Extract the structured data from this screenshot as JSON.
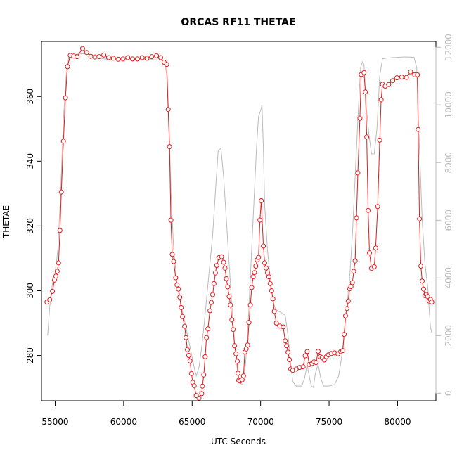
{
  "chart_data": {
    "type": "line",
    "title": "ORCAS RF11 THETAE",
    "xlabel": "UTC Seconds",
    "ylabel": "THETAE",
    "xlim": [
      54000,
      82800
    ],
    "ylim": [
      266,
      377
    ],
    "y2lim": [
      -260,
      12200
    ],
    "x_ticks": [
      55000,
      60000,
      65000,
      70000,
      75000,
      80000
    ],
    "y_ticks": [
      280,
      300,
      320,
      340,
      360
    ],
    "y2_ticks": [
      0,
      2000,
      4000,
      6000,
      8000,
      10000,
      12000
    ],
    "x_tick_labels": [
      "55000",
      "60000",
      "65000",
      "70000",
      "75000",
      "80000"
    ],
    "y_tick_labels": [
      "280",
      "300",
      "320",
      "340",
      "360"
    ],
    "y2_tick_labels": [
      "0",
      "2000",
      "4000",
      "6000",
      "8000",
      "10000",
      "12000"
    ],
    "grid": false,
    "series": [
      {
        "role": "thetae",
        "axis": "left",
        "color": "#e41a1c",
        "style": "line+open-circles",
        "points": [
          [
            54400,
            296.5
          ],
          [
            54600,
            297.2
          ],
          [
            54800,
            299.8
          ],
          [
            54950,
            303.3
          ],
          [
            55050,
            304.5
          ],
          [
            55150,
            306
          ],
          [
            55250,
            308.6
          ],
          [
            55350,
            318.6
          ],
          [
            55450,
            330.5
          ],
          [
            55600,
            346.2
          ],
          [
            55750,
            359.6
          ],
          [
            55900,
            369.2
          ],
          [
            56100,
            372.7
          ],
          [
            56350,
            372.5
          ],
          [
            56600,
            372.3
          ],
          [
            57000,
            374.8
          ],
          [
            57300,
            373.6
          ],
          [
            57600,
            372.4
          ],
          [
            57900,
            372.2
          ],
          [
            58200,
            372.3
          ],
          [
            58550,
            372.8
          ],
          [
            58900,
            372
          ],
          [
            59250,
            371.8
          ],
          [
            59600,
            371.5
          ],
          [
            59950,
            371.6
          ],
          [
            60300,
            372
          ],
          [
            60650,
            371.6
          ],
          [
            61000,
            371.6
          ],
          [
            61350,
            372
          ],
          [
            61700,
            371.8
          ],
          [
            62050,
            372.3
          ],
          [
            62400,
            372.6
          ],
          [
            62700,
            372
          ],
          [
            62950,
            370.6
          ],
          [
            63150,
            369.9
          ],
          [
            63250,
            356
          ],
          [
            63350,
            344.5
          ],
          [
            63450,
            321.8
          ],
          [
            63550,
            311.2
          ],
          [
            63650,
            309
          ],
          [
            63800,
            304
          ],
          [
            63900,
            301.8
          ],
          [
            64000,
            300.5
          ],
          [
            64100,
            298
          ],
          [
            64200,
            294.8
          ],
          [
            64300,
            292
          ],
          [
            64450,
            289
          ],
          [
            64550,
            285.5
          ],
          [
            64650,
            281.8
          ],
          [
            64750,
            280
          ],
          [
            64850,
            278.3
          ],
          [
            64950,
            274.4
          ],
          [
            65050,
            271.7
          ],
          [
            65150,
            270.6
          ],
          [
            65300,
            267.6
          ],
          [
            65500,
            266.8
          ],
          [
            65700,
            268.2
          ],
          [
            65750,
            270.5
          ],
          [
            65850,
            274
          ],
          [
            65950,
            279.6
          ],
          [
            66050,
            285.5
          ],
          [
            66150,
            288.2
          ],
          [
            66300,
            293.8
          ],
          [
            66400,
            296.4
          ],
          [
            66500,
            298.8
          ],
          [
            66600,
            302.2
          ],
          [
            66700,
            305.5
          ],
          [
            66800,
            307.8
          ],
          [
            66950,
            310.2
          ],
          [
            67150,
            310.5
          ],
          [
            67300,
            308.8
          ],
          [
            67400,
            307
          ],
          [
            67500,
            303.7
          ],
          [
            67600,
            301.2
          ],
          [
            67700,
            298.2
          ],
          [
            67800,
            295.6
          ],
          [
            67900,
            291
          ],
          [
            68000,
            288
          ],
          [
            68100,
            283
          ],
          [
            68200,
            280.5
          ],
          [
            68300,
            278.2
          ],
          [
            68350,
            274.5
          ],
          [
            68400,
            272.3
          ],
          [
            68500,
            272.1
          ],
          [
            68650,
            272.5
          ],
          [
            68750,
            273.7
          ],
          [
            68850,
            281
          ],
          [
            68950,
            282
          ],
          [
            69050,
            283.2
          ],
          [
            69150,
            290.2
          ],
          [
            69250,
            295.6
          ],
          [
            69350,
            301
          ],
          [
            69450,
            304.3
          ],
          [
            69550,
            305.6
          ],
          [
            69650,
            307.6
          ],
          [
            69750,
            309.5
          ],
          [
            69850,
            310.3
          ],
          [
            69950,
            321.8
          ],
          [
            70050,
            327.8
          ],
          [
            70200,
            313.8
          ],
          [
            70300,
            308.6
          ],
          [
            70400,
            307
          ],
          [
            70500,
            305.5
          ],
          [
            70600,
            304.3
          ],
          [
            70700,
            302.2
          ],
          [
            70800,
            300
          ],
          [
            70900,
            297.5
          ],
          [
            71000,
            293.6
          ],
          [
            71150,
            290
          ],
          [
            71400,
            289.1
          ],
          [
            71650,
            288.8
          ],
          [
            71800,
            284.5
          ],
          [
            71900,
            283
          ],
          [
            72000,
            281
          ],
          [
            72100,
            278.7
          ],
          [
            72200,
            275.8
          ],
          [
            72350,
            275.4
          ],
          [
            72600,
            275.8
          ],
          [
            72850,
            276.3
          ],
          [
            73100,
            276.5
          ],
          [
            73250,
            279.9
          ],
          [
            73400,
            281.2
          ],
          [
            73550,
            277.2
          ],
          [
            73750,
            277.5
          ],
          [
            73900,
            278
          ],
          [
            74050,
            277.8
          ],
          [
            74200,
            281.3
          ],
          [
            74350,
            279.6
          ],
          [
            74500,
            279.3
          ],
          [
            74650,
            278.6
          ],
          [
            74800,
            279.6
          ],
          [
            74950,
            280.2
          ],
          [
            75150,
            280.6
          ],
          [
            75400,
            280.8
          ],
          [
            75650,
            280.5
          ],
          [
            75850,
            281.2
          ],
          [
            76000,
            281.5
          ],
          [
            76100,
            286.5
          ],
          [
            76200,
            292.2
          ],
          [
            76300,
            294.5
          ],
          [
            76400,
            296.8
          ],
          [
            76500,
            300.6
          ],
          [
            76600,
            301.3
          ],
          [
            76700,
            302.5
          ],
          [
            76800,
            306
          ],
          [
            76900,
            309.2
          ],
          [
            77000,
            322.5
          ],
          [
            77100,
            336.4
          ],
          [
            77250,
            353.3
          ],
          [
            77350,
            366.8
          ],
          [
            77550,
            367.4
          ],
          [
            77650,
            361.4
          ],
          [
            77750,
            347.5
          ],
          [
            77850,
            324.8
          ],
          [
            77950,
            311.7
          ],
          [
            78100,
            306.9
          ],
          [
            78300,
            307.4
          ],
          [
            78400,
            313.2
          ],
          [
            78550,
            326
          ],
          [
            78700,
            346.5
          ],
          [
            78800,
            359
          ],
          [
            78900,
            363.8
          ],
          [
            79100,
            363.2
          ],
          [
            79350,
            363.7
          ],
          [
            79650,
            364.9
          ],
          [
            79950,
            365.8
          ],
          [
            80300,
            366
          ],
          [
            80650,
            365.9
          ],
          [
            80950,
            367.6
          ],
          [
            81250,
            366.7
          ],
          [
            81450,
            366.7
          ],
          [
            81500,
            349.8
          ],
          [
            81600,
            322.2
          ],
          [
            81700,
            307.6
          ],
          [
            81800,
            303
          ],
          [
            81900,
            300.5
          ],
          [
            82000,
            298.5
          ],
          [
            82100,
            298.8
          ],
          [
            82200,
            298.2
          ],
          [
            82300,
            296.8
          ],
          [
            82400,
            297.3
          ],
          [
            82500,
            296.5
          ]
        ]
      },
      {
        "role": "altitude",
        "axis": "right",
        "color": "#bbbbbb",
        "style": "line",
        "points": [
          [
            54450,
            2000
          ],
          [
            54600,
            3000
          ],
          [
            54800,
            3800
          ],
          [
            55000,
            4200
          ],
          [
            55200,
            5000
          ],
          [
            55400,
            7000
          ],
          [
            55600,
            9500
          ],
          [
            55800,
            11000
          ],
          [
            56000,
            11700
          ],
          [
            56500,
            11750
          ],
          [
            57000,
            11780
          ],
          [
            57500,
            11750
          ],
          [
            58000,
            11650
          ],
          [
            58500,
            11600
          ],
          [
            59000,
            11580
          ],
          [
            59500,
            11560
          ],
          [
            60000,
            11560
          ],
          [
            60500,
            11560
          ],
          [
            61000,
            11560
          ],
          [
            61500,
            11570
          ],
          [
            62000,
            11570
          ],
          [
            62500,
            11560
          ],
          [
            63000,
            11550
          ],
          [
            63150,
            11000
          ],
          [
            63300,
            9500
          ],
          [
            63450,
            7000
          ],
          [
            63650,
            5000
          ],
          [
            63900,
            3800
          ],
          [
            64200,
            3000
          ],
          [
            64500,
            2400
          ],
          [
            64800,
            1700
          ],
          [
            65100,
            1000
          ],
          [
            65300,
            600
          ],
          [
            65500,
            900
          ],
          [
            65700,
            1600
          ],
          [
            65900,
            2500
          ],
          [
            66100,
            3500
          ],
          [
            66300,
            4500
          ],
          [
            66500,
            5500
          ],
          [
            66700,
            7000
          ],
          [
            66900,
            8400
          ],
          [
            67100,
            8500
          ],
          [
            67300,
            7500
          ],
          [
            67500,
            6000
          ],
          [
            67700,
            4500
          ],
          [
            67900,
            3000
          ],
          [
            68100,
            1700
          ],
          [
            68300,
            800
          ],
          [
            68500,
            350
          ],
          [
            68700,
            300
          ],
          [
            68900,
            1000
          ],
          [
            69100,
            2500
          ],
          [
            69300,
            4500
          ],
          [
            69500,
            6500
          ],
          [
            69700,
            8500
          ],
          [
            69850,
            9600
          ],
          [
            70000,
            9800
          ],
          [
            70100,
            10000
          ],
          [
            70200,
            8500
          ],
          [
            70300,
            6500
          ],
          [
            70500,
            5000
          ],
          [
            70700,
            4000
          ],
          [
            70900,
            3200
          ],
          [
            71100,
            2900
          ],
          [
            71500,
            2800
          ],
          [
            71800,
            2700
          ],
          [
            72000,
            2000
          ],
          [
            72200,
            1000
          ],
          [
            72350,
            400
          ],
          [
            72600,
            250
          ],
          [
            73000,
            250
          ],
          [
            73200,
            500
          ],
          [
            73400,
            1000
          ],
          [
            73550,
            600
          ],
          [
            73700,
            250
          ],
          [
            73850,
            200
          ],
          [
            74000,
            700
          ],
          [
            74200,
            1000
          ],
          [
            74400,
            500
          ],
          [
            74600,
            250
          ],
          [
            75000,
            250
          ],
          [
            75400,
            300
          ],
          [
            75700,
            600
          ],
          [
            75900,
            1200
          ],
          [
            76100,
            2000
          ],
          [
            76300,
            3000
          ],
          [
            76500,
            4000
          ],
          [
            76700,
            5500
          ],
          [
            76900,
            7500
          ],
          [
            77100,
            9500
          ],
          [
            77300,
            11300
          ],
          [
            77450,
            11500
          ],
          [
            77550,
            11400
          ],
          [
            77700,
            10000
          ],
          [
            77900,
            9000
          ],
          [
            78100,
            8300
          ],
          [
            78300,
            8300
          ],
          [
            78500,
            9200
          ],
          [
            78700,
            11000
          ],
          [
            78900,
            11600
          ],
          [
            79200,
            11620
          ],
          [
            79600,
            11640
          ],
          [
            80000,
            11650
          ],
          [
            80400,
            11660
          ],
          [
            80800,
            11660
          ],
          [
            81200,
            11650
          ],
          [
            81400,
            11300
          ],
          [
            81600,
            8500
          ],
          [
            81800,
            6000
          ],
          [
            82000,
            4500
          ],
          [
            82200,
            3700
          ],
          [
            82400,
            2300
          ],
          [
            82500,
            2100
          ]
        ]
      }
    ]
  }
}
